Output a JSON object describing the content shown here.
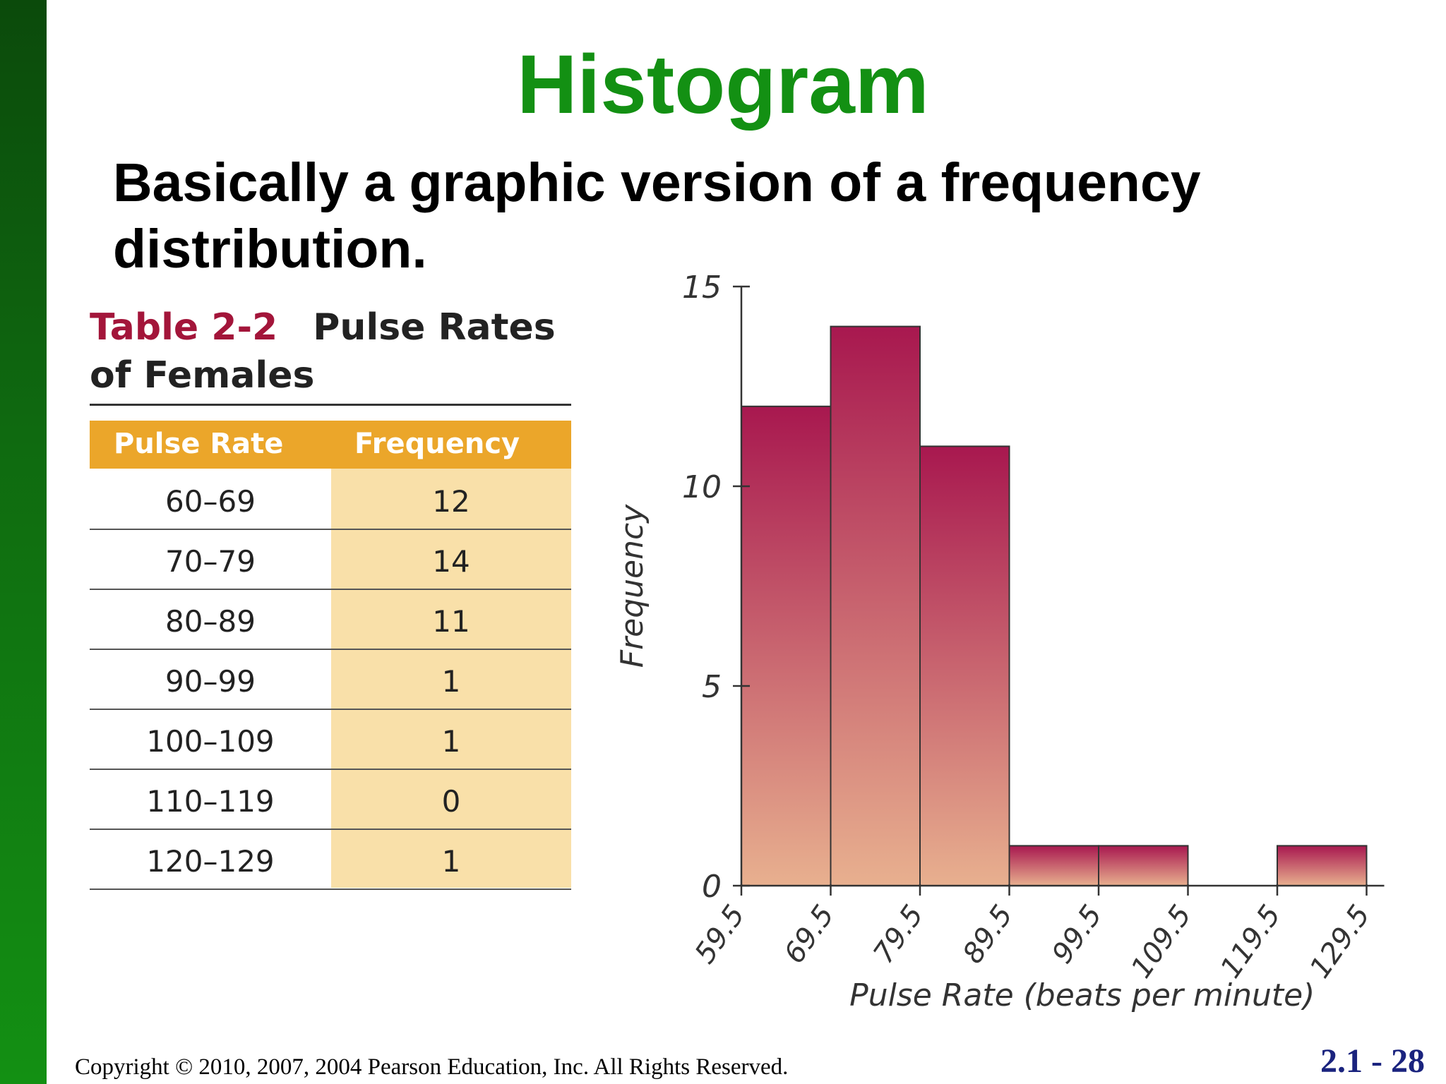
{
  "slide": {
    "title": "Histogram",
    "subtitle": "Basically a graphic version of a frequency distribution.",
    "footer": "Copyright © 2010, 2007, 2004 Pearson Education, Inc. All Rights Reserved.",
    "slide_number": "2.1 - 28",
    "colors": {
      "title": "#139013",
      "sidebar": "#0f6a10",
      "slide_number": "#1a237e"
    }
  },
  "table": {
    "number": "Table 2-2",
    "title": "Pulse Rates of Females",
    "headers": [
      "Pulse Rate",
      "Frequency"
    ],
    "rows": [
      [
        "60–69",
        "12"
      ],
      [
        "70–79",
        "14"
      ],
      [
        "80–89",
        "11"
      ],
      [
        "90–99",
        "1"
      ],
      [
        "100–109",
        "1"
      ],
      [
        "110–119",
        "0"
      ],
      [
        "120–129",
        "1"
      ]
    ],
    "colors": {
      "header": "#eba62a",
      "frequency_column": "#f9e0a9",
      "table_number": "#a3153a"
    }
  },
  "chart_data": {
    "type": "bar",
    "xlabel": "Pulse Rate (beats per minute)",
    "ylabel": "Frequency",
    "bin_edges": [
      59.5,
      69.5,
      79.5,
      89.5,
      99.5,
      109.5,
      119.5,
      129.5
    ],
    "bin_edge_labels": [
      "59.5",
      "69.5",
      "79.5",
      "89.5",
      "99.5",
      "109.5",
      "119.5",
      "129.5"
    ],
    "values": [
      12,
      14,
      11,
      1,
      1,
      0,
      1
    ],
    "yticks": [
      0,
      5,
      10,
      15
    ],
    "ylim": [
      0,
      15
    ],
    "grid": false,
    "colors": {
      "bar_top": "#a8184f",
      "bar_bottom": "#e8b08f"
    }
  }
}
